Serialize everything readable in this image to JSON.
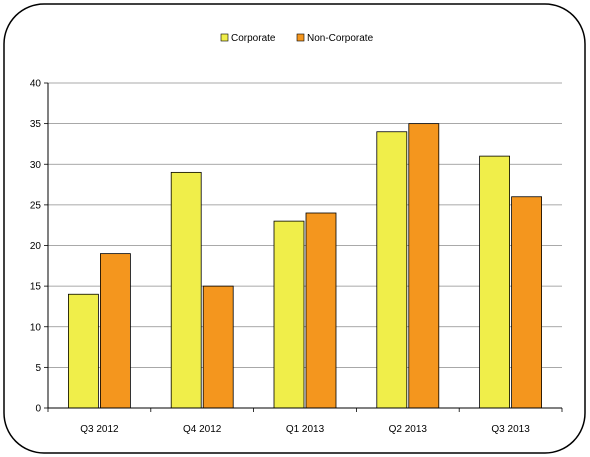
{
  "chart_data": {
    "type": "bar",
    "title": "",
    "xlabel": "",
    "ylabel": "",
    "categories": [
      "Q3 2012",
      "Q4 2012",
      "Q1 2013",
      "Q2 2013",
      "Q3 2013"
    ],
    "series": [
      {
        "name": "Corporate",
        "color": "#f0ee4a",
        "values": [
          14,
          29,
          23,
          34,
          31
        ]
      },
      {
        "name": "Non-Corporate",
        "color": "#f4961e",
        "values": [
          19,
          15,
          24,
          35,
          26
        ]
      }
    ],
    "ylim": [
      0,
      40
    ],
    "yticks": [
      0,
      5,
      10,
      15,
      20,
      25,
      30,
      35,
      40
    ],
    "grid": true,
    "legend": "top-center"
  }
}
